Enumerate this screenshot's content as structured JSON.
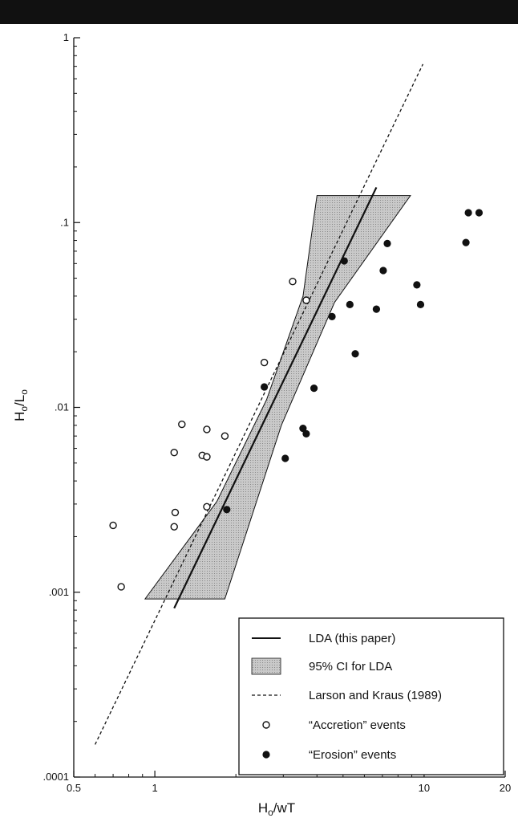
{
  "chart_data": {
    "type": "scatter",
    "x_scale": "log",
    "y_scale": "log",
    "xlim": [
      0.5,
      20
    ],
    "ylim": [
      0.0001,
      1
    ],
    "x_ticks": [
      {
        "value": 0.5,
        "label": "0.5"
      },
      {
        "value": 1,
        "label": "1"
      },
      {
        "value": 10,
        "label": "10"
      },
      {
        "value": 20,
        "label": "20"
      }
    ],
    "y_ticks": [
      {
        "value": 0.0001,
        "label": ".0001"
      },
      {
        "value": 0.001,
        "label": ".001"
      },
      {
        "value": 0.01,
        "label": ".01"
      },
      {
        "value": 0.1,
        "label": ".1"
      },
      {
        "value": 1,
        "label": "1"
      }
    ],
    "xlabel_main": "H",
    "xlabel_sub": "o",
    "xlabel_rest": "/wT",
    "ylabel_main": "H",
    "ylabel_sub": "o",
    "ylabel_mid": "/L",
    "ylabel_sub2": "o",
    "grid": false,
    "legend_position": "bottom-right",
    "lda_line": {
      "name": "LDA (this paper)",
      "points": [
        [
          1.18,
          0.00082
        ],
        [
          6.65,
          0.155
        ]
      ]
    },
    "ci_band": {
      "name": "95% CI for LDA",
      "polygon": [
        [
          0.92,
          0.00092
        ],
        [
          1.82,
          0.00092
        ],
        [
          2.95,
          0.008
        ],
        [
          4.65,
          0.037
        ],
        [
          8.9,
          0.14
        ],
        [
          4.0,
          0.14
        ],
        [
          3.55,
          0.04
        ],
        [
          2.6,
          0.011
        ],
        [
          1.7,
          0.0031
        ]
      ]
    },
    "lk_line": {
      "name": "Larson and Kraus (1989)",
      "points": [
        [
          0.6,
          0.00015
        ],
        [
          9.9,
          0.72
        ]
      ]
    },
    "accretion": {
      "name": "“Accretion” events",
      "points": [
        [
          0.7,
          0.0023
        ],
        [
          0.75,
          0.00107
        ],
        [
          1.18,
          0.00226
        ],
        [
          1.18,
          0.0057
        ],
        [
          1.19,
          0.0027
        ],
        [
          1.26,
          0.0081
        ],
        [
          1.5,
          0.0055
        ],
        [
          1.56,
          0.0076
        ],
        [
          1.56,
          0.0054
        ],
        [
          1.56,
          0.0029
        ],
        [
          1.82,
          0.007
        ],
        [
          2.55,
          0.0175
        ],
        [
          3.25,
          0.048
        ],
        [
          3.65,
          0.038
        ]
      ]
    },
    "erosion": {
      "name": "“Erosion” events",
      "points": [
        [
          1.85,
          0.0028
        ],
        [
          2.55,
          0.0129
        ],
        [
          3.05,
          0.0053
        ],
        [
          3.55,
          0.0077
        ],
        [
          3.65,
          0.0072
        ],
        [
          3.9,
          0.0127
        ],
        [
          4.55,
          0.031
        ],
        [
          5.05,
          0.062
        ],
        [
          5.3,
          0.036
        ],
        [
          5.55,
          0.0195
        ],
        [
          6.65,
          0.034
        ],
        [
          7.05,
          0.055
        ],
        [
          7.3,
          0.077
        ],
        [
          9.4,
          0.046
        ],
        [
          9.7,
          0.036
        ],
        [
          14.3,
          0.078
        ],
        [
          14.6,
          0.113
        ],
        [
          16.0,
          0.113
        ]
      ]
    }
  }
}
